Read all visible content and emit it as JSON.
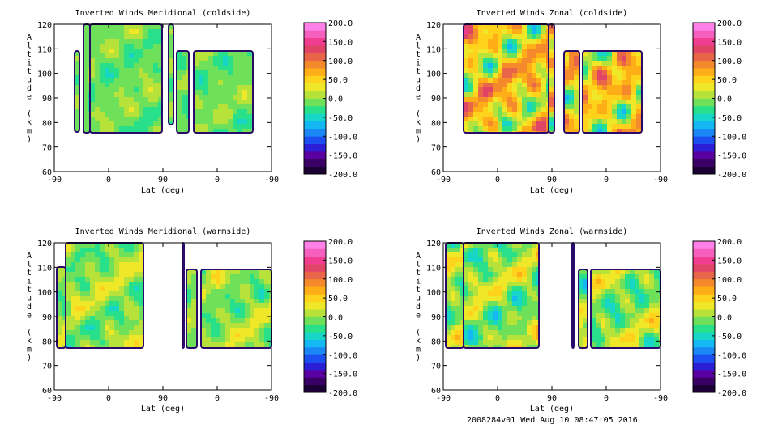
{
  "footer": "2008284v01 Wed Aug 10 08:47:05 2016",
  "colorbar": {
    "ticks": [
      "200.0",
      "150.0",
      "100.0",
      "50.0",
      "0.0",
      "-50.0",
      "-100.0",
      "-150.0",
      "-200.0"
    ],
    "range": [
      -200,
      200
    ],
    "colors": [
      "#1a0033",
      "#3b0066",
      "#5a00a0",
      "#2a1fd6",
      "#1c4ff0",
      "#1b86f5",
      "#14b8f2",
      "#17d6c8",
      "#29e08a",
      "#6ee05a",
      "#b6e23a",
      "#eee829",
      "#ffd21c",
      "#ffae18",
      "#f58a2c",
      "#e9654a",
      "#e04568",
      "#f03d8f",
      "#f55fbd",
      "#ff80e6"
    ]
  },
  "chart_data": [
    {
      "type": "heatmap",
      "title": "Inverted Winds Meridional (coldside)",
      "xlabel": "Lat (deg)",
      "ylabel": "Altitude (km)",
      "xticks": [
        "-90",
        "0",
        "90",
        "0",
        "-90"
      ],
      "yticks": [
        "60",
        "70",
        "80",
        "90",
        "100",
        "110",
        "120"
      ],
      "ylim": [
        60,
        120
      ],
      "colorbar_range": [
        -200,
        200
      ],
      "dominant_range": [
        -50,
        30
      ]
    },
    {
      "type": "heatmap",
      "title": "Inverted Winds Zonal (coldside)",
      "xlabel": "Lat (deg)",
      "ylabel": "Altitude (km)",
      "xticks": [
        "-90",
        "0",
        "90",
        "0",
        "-90"
      ],
      "yticks": [
        "60",
        "70",
        "80",
        "90",
        "100",
        "110",
        "120"
      ],
      "ylim": [
        60,
        120
      ],
      "colorbar_range": [
        -200,
        200
      ],
      "dominant_range": [
        -80,
        170
      ]
    },
    {
      "type": "heatmap",
      "title": "Inverted Winds Meridional (warmside)",
      "xlabel": "Lat (deg)",
      "ylabel": "Altitude (km)",
      "xticks": [
        "-90",
        "0",
        "90",
        "0",
        "-90"
      ],
      "yticks": [
        "60",
        "70",
        "80",
        "90",
        "100",
        "110",
        "120"
      ],
      "ylim": [
        60,
        120
      ],
      "colorbar_range": [
        -200,
        200
      ],
      "dominant_range": [
        -60,
        60
      ]
    },
    {
      "type": "heatmap",
      "title": "Inverted Winds Zonal (warmside)",
      "xlabel": "Lat (deg)",
      "ylabel": "Altitude (km)",
      "xticks": [
        "-90",
        "0",
        "90",
        "0",
        "-90"
      ],
      "yticks": [
        "60",
        "70",
        "80",
        "90",
        "100",
        "110",
        "120"
      ],
      "ylim": [
        60,
        120
      ],
      "colorbar_range": [
        -200,
        200
      ],
      "dominant_range": [
        -80,
        80
      ]
    }
  ]
}
